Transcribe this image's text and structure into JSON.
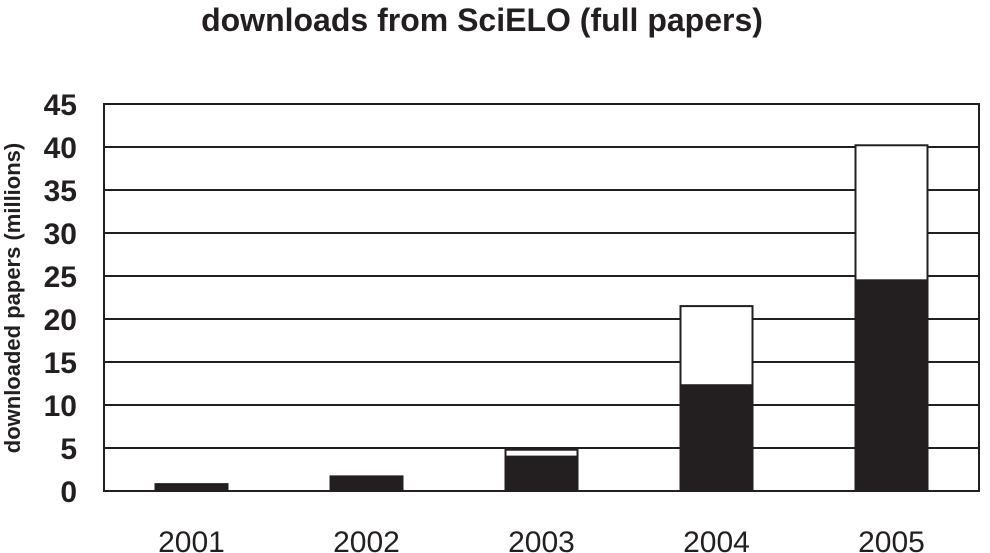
{
  "chart_data": {
    "type": "bar",
    "stacked": true,
    "title": "downloads from SciELO (full papers)",
    "xlabel": "",
    "ylabel": "downloaded papers (millions)",
    "categories": [
      "2001",
      "2002",
      "2003",
      "2004",
      "2005"
    ],
    "series": [
      {
        "values": [
          0.8,
          1.7,
          4.0,
          12.3,
          24.5
        ],
        "color": "#231f20"
      },
      {
        "values": [
          0.0,
          0.0,
          0.8,
          9.2,
          15.7
        ],
        "color": "#ffffff"
      }
    ],
    "ylim": [
      0,
      45
    ],
    "yticks": [
      0,
      5,
      10,
      15,
      20,
      25,
      30,
      35,
      40,
      45
    ],
    "grid": true,
    "legend": "none"
  }
}
